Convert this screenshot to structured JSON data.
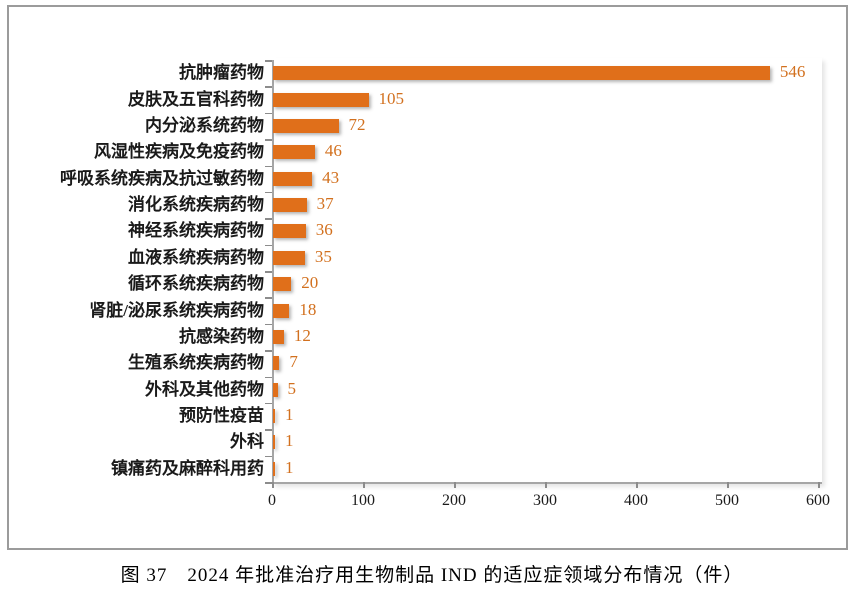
{
  "figure": {
    "caption": "图 37　2024 年批准治疗用生物制品 IND 的适应症领域分布情况（件）"
  },
  "chart_data": {
    "type": "bar",
    "orientation": "horizontal",
    "title": "",
    "xlabel": "",
    "ylabel": "",
    "categories": [
      "抗肿瘤药物",
      "皮肤及五官科药物",
      "内分泌系统药物",
      "风湿性疾病及免疫药物",
      "呼吸系统疾病及抗过敏药物",
      "消化系统疾病药物",
      "神经系统疾病药物",
      "血液系统疾病药物",
      "循环系统疾病药物",
      "肾脏/泌尿系统疾病药物",
      "抗感染药物",
      "生殖系统疾病药物",
      "外科及其他药物",
      "预防性疫苗",
      "外科",
      "镇痛药及麻醉科用药"
    ],
    "values": [
      546,
      105,
      72,
      46,
      43,
      37,
      36,
      35,
      20,
      18,
      12,
      7,
      5,
      1,
      1,
      1
    ],
    "value_labels_shown": true,
    "xlim": [
      0,
      600
    ],
    "x_ticks": [
      "0",
      "100",
      "200",
      "300",
      "400",
      "500",
      "600"
    ],
    "grid": false,
    "legend": "none",
    "bar_color": "#e06f1a",
    "value_label_color": "#d2701e",
    "axis_color": "#a6a6a6",
    "frame_color": "#9b9b9b"
  }
}
